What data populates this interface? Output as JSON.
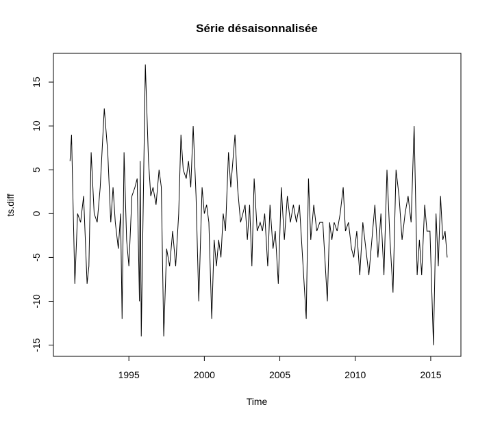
{
  "chart_data": {
    "type": "line",
    "title": "Série désaisonnalisée",
    "xlabel": "Time",
    "ylabel": "ts.diff",
    "color": "#000000",
    "xlim": [
      1990.0,
      2017.0
    ],
    "xticks": [
      1995,
      2000,
      2005,
      2010,
      2015
    ],
    "ylim": [
      -16.28,
      18.28
    ],
    "yticks": [
      -15,
      -10,
      -5,
      0,
      5,
      10,
      15
    ],
    "x": [
      1991.1,
      1991.2,
      1991.42,
      1991.6,
      1991.8,
      1992.0,
      1992.23,
      1992.35,
      1992.5,
      1992.7,
      1992.9,
      1993.1,
      1993.37,
      1993.6,
      1993.8,
      1993.95,
      1994.1,
      1994.3,
      1994.45,
      1994.55,
      1994.68,
      1994.85,
      1995.0,
      1995.2,
      1995.4,
      1995.55,
      1995.7,
      1995.75,
      1995.82,
      1996.09,
      1996.3,
      1996.45,
      1996.6,
      1996.8,
      1997.0,
      1997.15,
      1997.31,
      1997.5,
      1997.7,
      1997.9,
      1998.1,
      1998.3,
      1998.45,
      1998.6,
      1998.8,
      1998.95,
      1999.1,
      1999.26,
      1999.45,
      1999.63,
      1999.85,
      2000.0,
      2000.15,
      2000.3,
      2000.49,
      2000.65,
      2000.8,
      2000.95,
      2001.1,
      2001.25,
      2001.4,
      2001.6,
      2001.75,
      2002.03,
      2002.2,
      2002.4,
      2002.55,
      2002.7,
      2002.85,
      2003.0,
      2003.15,
      2003.3,
      2003.5,
      2003.7,
      2003.85,
      2004.0,
      2004.2,
      2004.35,
      2004.55,
      2004.7,
      2004.9,
      2005.1,
      2005.3,
      2005.5,
      2005.7,
      2005.9,
      2006.1,
      2006.3,
      2006.75,
      2006.9,
      2007.05,
      2007.25,
      2007.45,
      2007.65,
      2007.85,
      2008.15,
      2008.3,
      2008.45,
      2008.6,
      2008.8,
      2009.0,
      2009.2,
      2009.35,
      2009.55,
      2009.75,
      2009.9,
      2010.1,
      2010.3,
      2010.5,
      2010.7,
      2010.9,
      2011.1,
      2011.3,
      2011.5,
      2011.7,
      2011.9,
      2012.1,
      2012.3,
      2012.5,
      2012.7,
      2012.9,
      2013.1,
      2013.3,
      2013.5,
      2013.7,
      2013.9,
      2014.1,
      2014.25,
      2014.4,
      2014.6,
      2014.75,
      2014.95,
      2015.18,
      2015.35,
      2015.5,
      2015.65,
      2015.8,
      2015.95,
      2016.09
    ],
    "values": [
      6,
      9,
      -8,
      0,
      -1,
      2,
      -8,
      -6,
      7,
      0,
      -1,
      3,
      12,
      7,
      -1,
      3,
      -1,
      -4,
      0,
      -12,
      7,
      -3,
      -6,
      2,
      3,
      4,
      -10,
      6,
      -14,
      17,
      6,
      2,
      3,
      1,
      5,
      3,
      -14,
      -4,
      -6,
      -2,
      -6,
      0,
      9,
      5,
      4,
      6,
      3,
      10,
      2,
      -10,
      3,
      0,
      1,
      -1,
      -12,
      -3,
      -6,
      -3,
      -5,
      0,
      -2,
      7,
      3,
      9,
      3,
      -1,
      0,
      1,
      -3,
      1,
      -6,
      4,
      -2,
      -1,
      -2,
      0,
      -6,
      1,
      -4,
      -2,
      -8,
      3,
      -3,
      2,
      -1,
      1,
      -1,
      1,
      -12,
      4,
      -3,
      1,
      -2,
      -1,
      -1,
      -10,
      -1,
      -3,
      -1,
      -2,
      0,
      3,
      -2,
      -1,
      -4,
      -5,
      -2,
      -7,
      -1,
      -4,
      -7,
      -3,
      1,
      -5,
      0,
      -7,
      5,
      -3,
      -9,
      5,
      2,
      -3,
      0,
      2,
      -1,
      10,
      -7,
      -3,
      -7,
      1,
      -2,
      -2,
      -15,
      0,
      -6,
      2,
      -3,
      -2,
      -5
    ]
  }
}
